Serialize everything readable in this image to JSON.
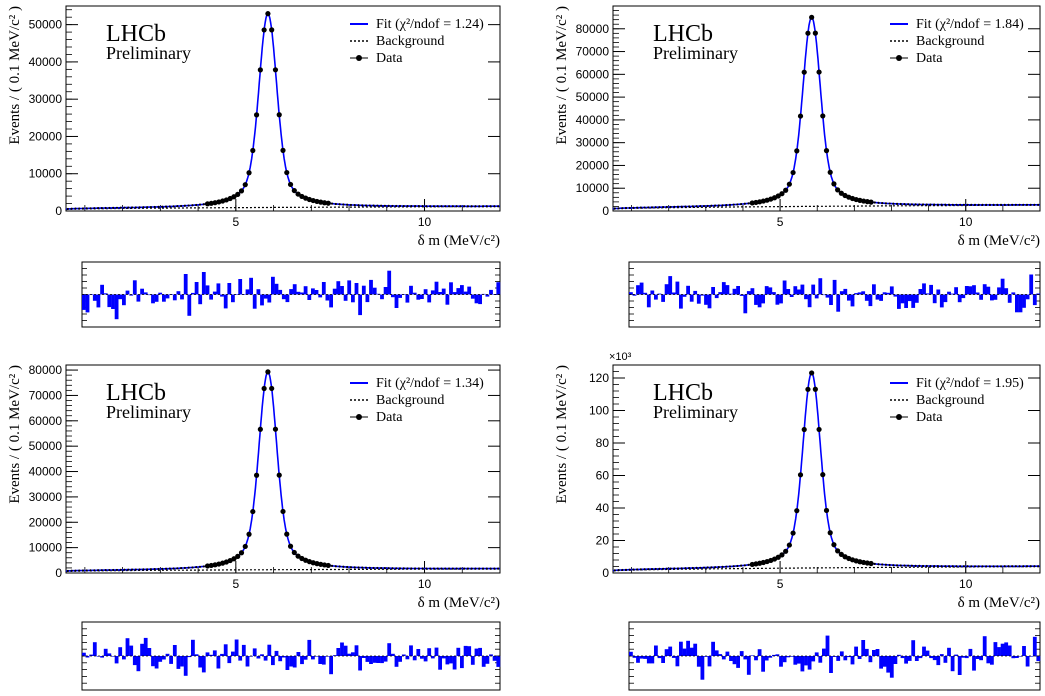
{
  "chart_data": [
    {
      "type": "line",
      "watermark": [
        "LHCb",
        "Preliminary"
      ],
      "ylabel": "Events / ( 0.1 MeV/c² )",
      "xlabel": "δ m (MeV/c²)",
      "xlim": [
        0.5,
        12.0
      ],
      "ylim": [
        0,
        55000
      ],
      "yticks": [
        0,
        10000,
        20000,
        30000,
        40000,
        50000
      ],
      "xticks": [
        5,
        10
      ],
      "legend": {
        "placement": "top-right",
        "entries": [
          "Fit (χ²/ndof = 1.24)",
          "Background",
          "Data"
        ]
      },
      "peak": {
        "mean": 5.85,
        "amplitude": 52000,
        "sigma": 0.22,
        "tail_gamma": 0.45
      },
      "background": {
        "start": 400,
        "end": 1200
      },
      "series": [
        {
          "name": "Fit (χ²/ndof = 1.24)",
          "color": "#0000ff",
          "style": "solid"
        },
        {
          "name": "Background",
          "color": "#000000",
          "style": "dotted"
        },
        {
          "name": "Data",
          "color": "#000000",
          "style": "points"
        }
      ],
      "pull": {
        "range": [
          -5,
          5
        ],
        "color": "#0000ff"
      }
    },
    {
      "type": "line",
      "watermark": [
        "LHCb",
        "Preliminary"
      ],
      "ylabel": "Events / ( 0.1 MeV/c² )",
      "xlabel": "δ m (MeV/c²)",
      "xlim": [
        0.5,
        12.0
      ],
      "ylim": [
        0,
        90000
      ],
      "yticks": [
        0,
        10000,
        20000,
        30000,
        40000,
        50000,
        60000,
        70000,
        80000
      ],
      "xticks": [
        5,
        10
      ],
      "legend": {
        "placement": "top-right",
        "entries": [
          "Fit (χ²/ndof = 1.84)",
          "Background",
          "Data"
        ]
      },
      "peak": {
        "mean": 5.85,
        "amplitude": 83000,
        "sigma": 0.22,
        "tail_gamma": 0.45
      },
      "background": {
        "start": 800,
        "end": 2600
      },
      "series": [
        {
          "name": "Fit (χ²/ndof = 1.84)",
          "color": "#0000ff",
          "style": "solid"
        },
        {
          "name": "Background",
          "color": "#000000",
          "style": "dotted"
        },
        {
          "name": "Data",
          "color": "#000000",
          "style": "points"
        }
      ],
      "pull": {
        "range": [
          -5,
          5
        ],
        "color": "#0000ff"
      }
    },
    {
      "type": "line",
      "watermark": [
        "LHCb",
        "Preliminary"
      ],
      "ylabel": "Events / ( 0.1 MeV/c² )",
      "xlabel": "δ m (MeV/c²)",
      "xlim": [
        0.5,
        12.0
      ],
      "ylim": [
        0,
        82000
      ],
      "yticks": [
        0,
        10000,
        20000,
        30000,
        40000,
        50000,
        60000,
        70000,
        80000
      ],
      "xticks": [
        5,
        10
      ],
      "legend": {
        "placement": "top-right",
        "entries": [
          "Fit (χ²/ndof = 1.34)",
          "Background",
          "Data"
        ]
      },
      "peak": {
        "mean": 5.85,
        "amplitude": 78000,
        "sigma": 0.22,
        "tail_gamma": 0.45
      },
      "background": {
        "start": 600,
        "end": 1600
      },
      "series": [
        {
          "name": "Fit (χ²/ndof = 1.34)",
          "color": "#0000ff",
          "style": "solid"
        },
        {
          "name": "Background",
          "color": "#000000",
          "style": "dotted"
        },
        {
          "name": "Data",
          "color": "#000000",
          "style": "points"
        }
      ],
      "pull": {
        "range": [
          -5,
          5
        ],
        "color": "#0000ff"
      }
    },
    {
      "type": "line",
      "watermark": [
        "LHCb",
        "Preliminary"
      ],
      "ylabel": "Events / ( 0.1 MeV/c² )",
      "xlabel": "δ m (MeV/c²)",
      "xlim": [
        0.5,
        12.0
      ],
      "ylim": [
        0,
        128
      ],
      "yticks": [
        0,
        20,
        40,
        60,
        80,
        100,
        120
      ],
      "yexponent": "×10³",
      "xticks": [
        5,
        10
      ],
      "legend": {
        "placement": "top-right",
        "entries": [
          "Fit (χ²/ndof = 1.95)",
          "Background",
          "Data"
        ]
      },
      "peak": {
        "mean": 5.85,
        "amplitude": 120,
        "sigma": 0.22,
        "tail_gamma": 0.45
      },
      "background": {
        "start": 1.2,
        "end": 4.0
      },
      "series": [
        {
          "name": "Fit (χ²/ndof = 1.95)",
          "color": "#0000ff",
          "style": "solid"
        },
        {
          "name": "Background",
          "color": "#000000",
          "style": "dotted"
        },
        {
          "name": "Data",
          "color": "#000000",
          "style": "points"
        }
      ],
      "pull": {
        "range": [
          -5,
          5
        ],
        "color": "#0000ff"
      }
    }
  ]
}
